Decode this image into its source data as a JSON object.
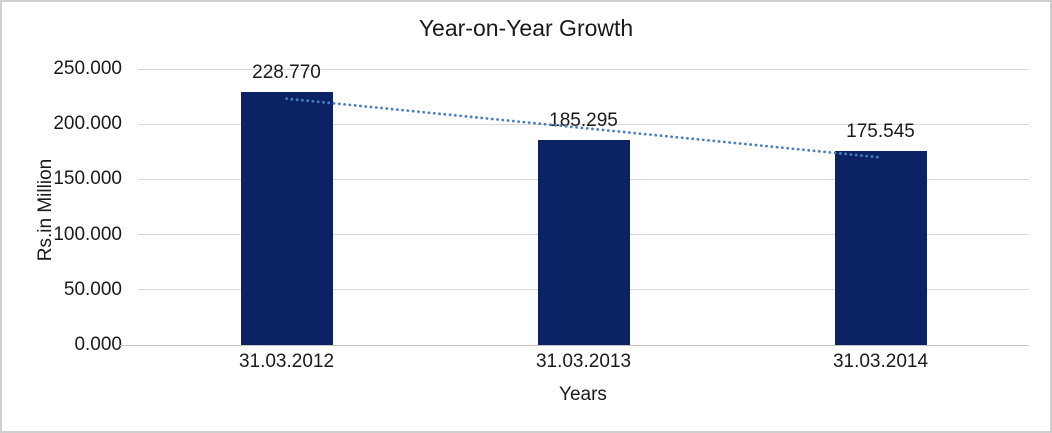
{
  "window": {
    "background": "#ffffff",
    "border_color": "#cfcfcf"
  },
  "chart_data": {
    "type": "bar",
    "title": "Year-on-Year Growth",
    "xlabel": "Years",
    "ylabel": "Rs.in Million",
    "categories": [
      "31.03.2012",
      "31.03.2013",
      "31.03.2014"
    ],
    "values": [
      228.77,
      185.295,
      175.545
    ],
    "data_labels": [
      "228.770",
      "185.295",
      "175.545"
    ],
    "y_ticks": [
      {
        "value": 0,
        "label": "0.000"
      },
      {
        "value": 50,
        "label": "50.000"
      },
      {
        "value": 100,
        "label": "100.000"
      },
      {
        "value": 150,
        "label": "150.000"
      },
      {
        "value": 200,
        "label": "200.000"
      },
      {
        "value": 250,
        "label": "250.000"
      }
    ],
    "ylim": [
      0,
      250
    ],
    "grid": true,
    "legend": "none",
    "bar_color": "#0b2265",
    "trendline": {
      "type": "linear",
      "style": "dotted",
      "color": "#4a7ebf"
    },
    "gridline_color": "#d9d9d9",
    "axis_line_color": "#c3c3c3",
    "text_color": "#1a1a1a"
  }
}
